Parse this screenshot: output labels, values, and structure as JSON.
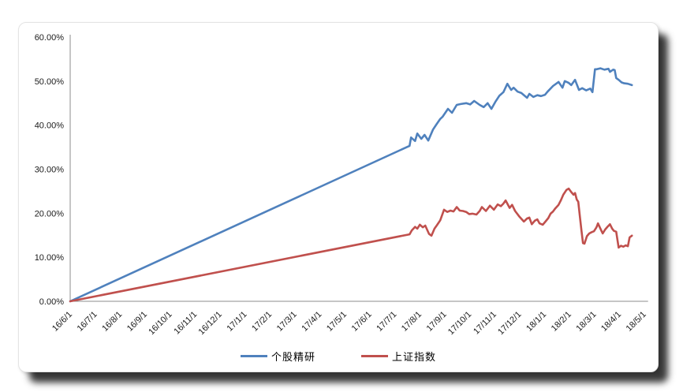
{
  "card": {
    "background": "#ffffff",
    "border_color": "#e4e4e4",
    "shadow_color": "rgba(0,0,0,0.78)"
  },
  "chart_data": {
    "type": "line",
    "title": "",
    "grid": "off",
    "legend_position": "bottom",
    "axis_color": "#8c8c8c",
    "x_axis": {
      "unit": "months_since_16/6/1",
      "label_rotation_deg": -45,
      "tick_labels": [
        "16/6/1",
        "16/7/1",
        "16/8/1",
        "16/9/1",
        "16/10/1",
        "16/11/1",
        "16/12/1",
        "17/1/1",
        "17/2/1",
        "17/3/1",
        "17/4/1",
        "17/5/1",
        "17/6/1",
        "17/7/1",
        "17/8/1",
        "17/9/1",
        "17/10/1",
        "17/11/1",
        "17/12/1",
        "18/1/1",
        "18/2/1",
        "18/3/1",
        "18/4/1",
        "18/5/1"
      ]
    },
    "y_axis": {
      "min": 0,
      "max": 60,
      "step": 10,
      "unit": "%",
      "tick_labels": [
        "0.00%",
        "10.00%",
        "20.00%",
        "30.00%",
        "40.00%",
        "50.00%",
        "60.00%"
      ]
    },
    "series": [
      {
        "name": "个股精研",
        "color": "#4F81BD",
        "points": [
          [
            0,
            0
          ],
          [
            13.6,
            35.3
          ],
          [
            13.66,
            37.2
          ],
          [
            13.82,
            36.4
          ],
          [
            13.91,
            38.1
          ],
          [
            14.07,
            36.9
          ],
          [
            14.2,
            37.8
          ],
          [
            14.35,
            36.5
          ],
          [
            14.54,
            39.0
          ],
          [
            14.67,
            40.1
          ],
          [
            14.83,
            41.4
          ],
          [
            14.92,
            41.9
          ],
          [
            15.14,
            43.7
          ],
          [
            15.3,
            42.8
          ],
          [
            15.49,
            44.6
          ],
          [
            15.65,
            44.8
          ],
          [
            15.87,
            45.0
          ],
          [
            16.03,
            44.7
          ],
          [
            16.19,
            45.5
          ],
          [
            16.41,
            44.6
          ],
          [
            16.57,
            44.1
          ],
          [
            16.73,
            45.0
          ],
          [
            16.88,
            43.7
          ],
          [
            17.04,
            45.3
          ],
          [
            17.2,
            46.7
          ],
          [
            17.36,
            47.5
          ],
          [
            17.52,
            49.4
          ],
          [
            17.67,
            48.0
          ],
          [
            17.77,
            48.5
          ],
          [
            17.93,
            47.6
          ],
          [
            18.08,
            47.3
          ],
          [
            18.31,
            46.2
          ],
          [
            18.4,
            47.1
          ],
          [
            18.56,
            46.4
          ],
          [
            18.72,
            46.8
          ],
          [
            18.87,
            46.6
          ],
          [
            19.03,
            46.9
          ],
          [
            19.13,
            47.6
          ],
          [
            19.35,
            48.9
          ],
          [
            19.57,
            49.8
          ],
          [
            19.73,
            48.5
          ],
          [
            19.82,
            50.0
          ],
          [
            19.98,
            49.6
          ],
          [
            20.08,
            49.1
          ],
          [
            20.23,
            50.3
          ],
          [
            20.39,
            48.0
          ],
          [
            20.52,
            48.4
          ],
          [
            20.68,
            47.9
          ],
          [
            20.84,
            48.3
          ],
          [
            20.93,
            47.5
          ],
          [
            21.03,
            52.7
          ],
          [
            21.09,
            52.7
          ],
          [
            21.25,
            52.9
          ],
          [
            21.41,
            52.6
          ],
          [
            21.57,
            52.8
          ],
          [
            21.63,
            52.1
          ],
          [
            21.76,
            52.6
          ],
          [
            21.82,
            52.5
          ],
          [
            21.88,
            50.7
          ],
          [
            21.98,
            50.3
          ],
          [
            22.1,
            49.7
          ],
          [
            22.2,
            49.5
          ],
          [
            22.35,
            49.4
          ],
          [
            22.51,
            49.1
          ]
        ]
      },
      {
        "name": "上证指数",
        "color": "#C0504D",
        "points": [
          [
            0,
            0
          ],
          [
            13.6,
            15.2
          ],
          [
            13.69,
            16.1
          ],
          [
            13.82,
            16.9
          ],
          [
            13.91,
            16.5
          ],
          [
            14.01,
            17.4
          ],
          [
            14.13,
            16.8
          ],
          [
            14.23,
            17.2
          ],
          [
            14.38,
            15.3
          ],
          [
            14.48,
            14.9
          ],
          [
            14.6,
            16.5
          ],
          [
            14.7,
            17.3
          ],
          [
            14.83,
            18.4
          ],
          [
            14.98,
            20.8
          ],
          [
            15.11,
            20.3
          ],
          [
            15.24,
            20.6
          ],
          [
            15.36,
            20.4
          ],
          [
            15.49,
            21.4
          ],
          [
            15.61,
            20.6
          ],
          [
            15.74,
            20.5
          ],
          [
            15.87,
            20.3
          ],
          [
            15.99,
            19.8
          ],
          [
            16.12,
            19.9
          ],
          [
            16.28,
            19.7
          ],
          [
            16.41,
            20.5
          ],
          [
            16.5,
            21.4
          ],
          [
            16.66,
            20.5
          ],
          [
            16.82,
            21.7
          ],
          [
            16.98,
            20.8
          ],
          [
            17.13,
            22.0
          ],
          [
            17.26,
            21.6
          ],
          [
            17.36,
            22.2
          ],
          [
            17.45,
            22.9
          ],
          [
            17.61,
            21.2
          ],
          [
            17.71,
            21.9
          ],
          [
            17.83,
            20.5
          ],
          [
            17.99,
            19.3
          ],
          [
            18.18,
            18.1
          ],
          [
            18.31,
            18.8
          ],
          [
            18.4,
            19.0
          ],
          [
            18.5,
            17.5
          ],
          [
            18.62,
            18.3
          ],
          [
            18.72,
            18.6
          ],
          [
            18.81,
            17.7
          ],
          [
            18.94,
            17.4
          ],
          [
            19.03,
            18.0
          ],
          [
            19.16,
            18.9
          ],
          [
            19.25,
            19.9
          ],
          [
            19.35,
            20.4
          ],
          [
            19.44,
            21.1
          ],
          [
            19.57,
            21.9
          ],
          [
            19.67,
            23.0
          ],
          [
            19.76,
            24.2
          ],
          [
            19.89,
            25.3
          ],
          [
            19.98,
            25.6
          ],
          [
            20.08,
            24.8
          ],
          [
            20.17,
            24.2
          ],
          [
            20.23,
            24.6
          ],
          [
            20.3,
            23.1
          ],
          [
            20.36,
            22.6
          ],
          [
            20.42,
            19.5
          ],
          [
            20.49,
            16.0
          ],
          [
            20.55,
            13.2
          ],
          [
            20.61,
            13.1
          ],
          [
            20.71,
            14.8
          ],
          [
            20.8,
            15.4
          ],
          [
            20.9,
            15.7
          ],
          [
            20.99,
            15.9
          ],
          [
            21.09,
            16.8
          ],
          [
            21.15,
            17.7
          ],
          [
            21.25,
            16.5
          ],
          [
            21.34,
            15.4
          ],
          [
            21.44,
            16.3
          ],
          [
            21.53,
            16.9
          ],
          [
            21.63,
            17.5
          ],
          [
            21.72,
            16.5
          ],
          [
            21.79,
            16.0
          ],
          [
            21.88,
            15.8
          ],
          [
            21.98,
            12.2
          ],
          [
            22.07,
            12.6
          ],
          [
            22.17,
            12.4
          ],
          [
            22.26,
            12.7
          ],
          [
            22.35,
            12.5
          ],
          [
            22.42,
            14.5
          ],
          [
            22.51,
            14.9
          ]
        ]
      }
    ]
  }
}
